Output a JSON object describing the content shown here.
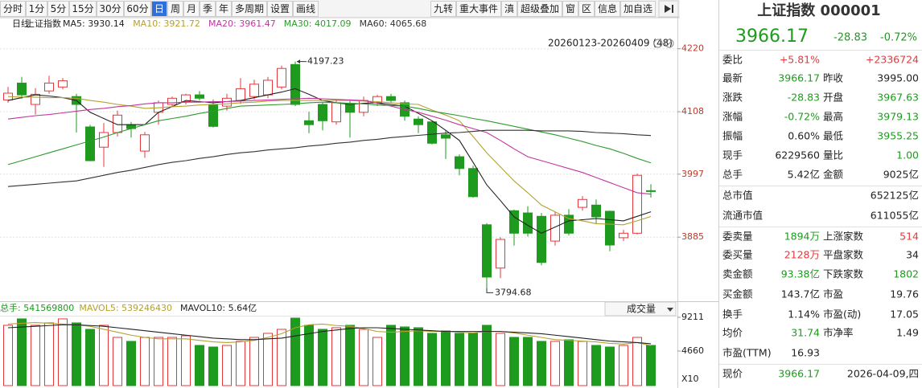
{
  "toolbar": {
    "left": [
      "分时",
      "1分",
      "5分",
      "15分",
      "30分",
      "60分",
      "日",
      "周",
      "月",
      "季",
      "年",
      "多周期",
      "设置",
      "画线"
    ],
    "selected": 6,
    "right": [
      "九转",
      "重大事件",
      "滇",
      "超级叠加",
      "窗",
      "区",
      "信息",
      "加自选"
    ]
  },
  "chart_data": {
    "type": "candlestick",
    "period": "日线",
    "name": "上证指数",
    "range_label": "20260123-20260409 (48)",
    "ylim": [
      3771,
      4261
    ],
    "yticks": [
      4220,
      4108,
      3997,
      3885
    ],
    "grid": true,
    "up_color": "#e4393c",
    "down_color": "#1e9b1e",
    "open": [
      4129,
      4159,
      4121,
      4145,
      4152,
      4135,
      4081,
      4045,
      4071,
      4085,
      4038,
      4107,
      4121,
      4126,
      4138,
      4121,
      4118,
      4128,
      4135,
      4138,
      4152,
      4192,
      4092,
      4121,
      4090,
      4121,
      4107,
      4124,
      4135,
      4124,
      4095,
      4090,
      4067,
      4028,
      4007,
      3907,
      3830,
      3932,
      3928,
      3922,
      3878,
      3924,
      3938,
      3942,
      3931,
      3884,
      3892,
      3967.63
    ],
    "high": [
      4152,
      4170,
      4150,
      4172,
      4168,
      4140,
      4085,
      4088,
      4110,
      4090,
      4072,
      4128,
      4135,
      4140,
      4145,
      4130,
      4140,
      4168,
      4165,
      4170,
      4190,
      4197.23,
      4108,
      4124,
      4130,
      4130,
      4135,
      4138,
      4140,
      4128,
      4100,
      4092,
      4075,
      4032,
      4012,
      3910,
      3885,
      3934,
      3940,
      3928,
      3930,
      3935,
      3958,
      3952,
      3932,
      3898,
      3998,
      3979.13
    ],
    "low": [
      4124,
      4131,
      4103,
      4140,
      4148,
      4071,
      4020,
      4010,
      4064,
      4062,
      4026,
      4085,
      4116,
      4121,
      4128,
      4080,
      4110,
      4122,
      4130,
      4132,
      4148,
      4118,
      4070,
      4075,
      4085,
      4062,
      4100,
      4118,
      4124,
      4092,
      4070,
      4050,
      4024,
      3995,
      3955,
      3794.68,
      3812,
      3870,
      3886,
      3835,
      3870,
      3888,
      3932,
      3908,
      3860,
      3878,
      3890,
      3955.25
    ],
    "close": [
      4141,
      4138,
      4139,
      4159,
      4163,
      4121,
      4021,
      4071,
      4102,
      4078,
      4067,
      4124,
      4132,
      4138,
      4132,
      4082,
      4132,
      4149,
      4157,
      4164,
      4185,
      4121,
      4085,
      4092,
      4124,
      4107,
      4128,
      4135,
      4128,
      4100,
      4085,
      4052,
      4061,
      4007,
      3957,
      3814,
      3881,
      3892,
      3892,
      3840,
      3924,
      3892,
      3952,
      3921,
      3871,
      3892,
      3995,
      3966.17
    ],
    "high_label": "4197.23",
    "low_label": "3794.68",
    "ma": [
      {
        "legend": "MA5: 3930.14",
        "color": "#222222",
        "values": [
          4128,
          4133,
          4138,
          4136,
          4133,
          4128,
          4107,
          4096,
          4085,
          4085,
          4085,
          4107,
          4117,
          4128,
          4126,
          4124,
          4126,
          4128,
          4133,
          4138,
          4143,
          4149,
          4139,
          4128,
          4124,
          4121,
          4123,
          4124,
          4121,
          4118,
          4105,
          4092,
          4075,
          4057,
          4018,
          3978,
          3950,
          3921,
          3906,
          3892,
          3903,
          3914,
          3916,
          3918,
          3916,
          3914,
          3922,
          3930.14
        ]
      },
      {
        "legend": "MA10: 3921.72",
        "color": "#b5a030",
        "values": [
          4135,
          4134,
          4134,
          4133,
          4133,
          4132,
          4128,
          4125,
          4121,
          4118,
          4114,
          4115,
          4117,
          4118,
          4120,
          4121,
          4122,
          4124,
          4125,
          4127,
          4128,
          4128,
          4128,
          4128,
          4128,
          4128,
          4127,
          4126,
          4124,
          4122,
          4121,
          4111,
          4102,
          4092,
          4064,
          4035,
          4010,
          3985,
          3964,
          3942,
          3930,
          3918,
          3914,
          3909,
          3908,
          3907,
          3914,
          3921.72
        ]
      },
      {
        "legend": "MA20: 3961.47",
        "color": "#c2379e",
        "values": [
          4095,
          4098,
          4101,
          4103,
          4106,
          4109,
          4112,
          4114,
          4117,
          4119,
          4122,
          4124,
          4124,
          4125,
          4125,
          4126,
          4126,
          4127,
          4128,
          4129,
          4130,
          4131,
          4132,
          4131,
          4130,
          4129,
          4128,
          4123,
          4118,
          4112,
          4107,
          4100,
          4093,
          4085,
          4078,
          4071,
          4057,
          4042,
          4028,
          4021,
          4014,
          4007,
          4000,
          3991,
          3982,
          3973,
          3964,
          3961.47
        ]
      },
      {
        "legend": "MA30: 4017.09",
        "color": "#2e9a2e",
        "values": [
          4014,
          4021,
          4028,
          4035,
          4042,
          4049,
          4056,
          4063,
          4071,
          4078,
          4085,
          4092,
          4096,
          4100,
          4105,
          4109,
          4114,
          4118,
          4119,
          4120,
          4121,
          4122,
          4124,
          4125,
          4124,
          4123,
          4122,
          4120,
          4119,
          4118,
          4114,
          4109,
          4105,
          4101,
          4096,
          4092,
          4087,
          4082,
          4077,
          4072,
          4067,
          4061,
          4055,
          4048,
          4042,
          4034,
          4025,
          4017.09
        ]
      },
      {
        "legend": "MA60: 4065.68",
        "color": "#333333",
        "values": [
          3975,
          3977,
          3979,
          3981,
          3983,
          3985,
          3990,
          3995,
          4000,
          4004,
          4009,
          4014,
          4018,
          4021,
          4025,
          4028,
          4032,
          4035,
          4037,
          4040,
          4042,
          4044,
          4047,
          4049,
          4052,
          4054,
          4057,
          4059,
          4062,
          4064,
          4066,
          4068,
          4070,
          4071,
          4073,
          4075,
          4075,
          4075,
          4075,
          4074,
          4074,
          4074,
          4073,
          4071,
          4070,
          4069,
          4067,
          4065.68
        ]
      }
    ],
    "volume": {
      "header": [
        {
          "text": "总手: 541569800",
          "color": "#1e9b1e"
        },
        {
          "text": "MAVOL5: 539246430",
          "color": "#b5a030"
        },
        {
          "text": "MAVOL10: 5.64亿",
          "color": "#222222"
        }
      ],
      "selector": "成交量",
      "ylim": [
        0,
        9426
      ],
      "yticks": [
        4660,
        9211
      ],
      "unit_label": "X10",
      "values": [
        8130,
        8997,
        8130,
        8455,
        8997,
        8455,
        7588,
        8130,
        6504,
        5962,
        6504,
        6504,
        6504,
        6721,
        5420,
        5203,
        5420,
        5962,
        6504,
        7046,
        7588,
        9100,
        8130,
        7588,
        7805,
        8130,
        7588,
        6504,
        8130,
        7913,
        7805,
        7046,
        7371,
        7046,
        7046,
        8130,
        7046,
        6504,
        6504,
        5962,
        5962,
        6179,
        5962,
        5420,
        5203,
        5420,
        6504,
        5416
      ],
      "ma": [
        {
          "color": "#b5a030",
          "values": [
            8300,
            8400,
            8500,
            8400,
            8300,
            8200,
            8000,
            7600,
            7200,
            6800,
            6500,
            6300,
            6300,
            6300,
            6100,
            5900,
            5800,
            5900,
            6100,
            6500,
            7000,
            7800,
            8200,
            8300,
            8100,
            8000,
            7700,
            7300,
            7200,
            7300,
            7400,
            7300,
            7300,
            7200,
            7100,
            7300,
            7300,
            7100,
            6800,
            6500,
            6200,
            6100,
            6000,
            5900,
            5700,
            5600,
            5800,
            5392
          ]
        },
        {
          "color": "#222222",
          "values": [
            7800,
            7900,
            8000,
            8100,
            8200,
            8200,
            8100,
            8000,
            7800,
            7600,
            7400,
            7200,
            7000,
            6800,
            6600,
            6400,
            6300,
            6200,
            6200,
            6300,
            6400,
            6700,
            7000,
            7300,
            7500,
            7700,
            7800,
            7800,
            7700,
            7600,
            7500,
            7400,
            7300,
            7300,
            7300,
            7300,
            7300,
            7200,
            7100,
            7000,
            6800,
            6600,
            6400,
            6200,
            6000,
            5900,
            5800,
            5640
          ]
        }
      ]
    }
  },
  "quote": {
    "title": "上证指数 000001",
    "price": "3966.17",
    "change": "-28.83",
    "change_pct": "-0.72%",
    "color": "#1e9b1e",
    "rows": [
      {
        "cells": [
          {
            "text": "委比"
          },
          {
            "text": "+5.81%",
            "color": "#e4393c"
          },
          {
            "text": "+2336724",
            "color": "#e4393c"
          }
        ]
      },
      {
        "cells": [
          {
            "text": "最新"
          },
          {
            "text": "3966.17",
            "color": "#1e9b1e"
          },
          {
            "text": "昨收"
          },
          {
            "text": "3995.00"
          }
        ]
      },
      {
        "cells": [
          {
            "text": "涨跌"
          },
          {
            "text": "-28.83",
            "color": "#1e9b1e"
          },
          {
            "text": "开盘"
          },
          {
            "text": "3967.63",
            "color": "#1e9b1e"
          }
        ]
      },
      {
        "cells": [
          {
            "text": "涨幅"
          },
          {
            "text": "-0.72%",
            "color": "#1e9b1e"
          },
          {
            "text": "最高"
          },
          {
            "text": "3979.13",
            "color": "#1e9b1e"
          }
        ]
      },
      {
        "cells": [
          {
            "text": "振幅"
          },
          {
            "text": "0.60%"
          },
          {
            "text": "最低"
          },
          {
            "text": "3955.25",
            "color": "#1e9b1e"
          }
        ]
      },
      {
        "cells": [
          {
            "text": "现手"
          },
          {
            "text": "6229560"
          },
          {
            "text": "量比"
          },
          {
            "text": "1.00",
            "color": "#1e9b1e"
          }
        ]
      },
      {
        "cells": [
          {
            "text": "总手"
          },
          {
            "text": "5.42亿"
          },
          {
            "text": "金额"
          },
          {
            "text": "9025亿"
          }
        ]
      },
      {
        "cells": [
          {
            "text": "总市值"
          },
          {
            "text": "652125亿"
          }
        ],
        "wide": true
      },
      {
        "cells": [
          {
            "text": "流通市值"
          },
          {
            "text": "611055亿"
          }
        ],
        "wide": true
      },
      {
        "cells": [
          {
            "text": "委卖量"
          },
          {
            "text": "1894万",
            "color": "#1e9b1e"
          },
          {
            "text": "上涨家数"
          },
          {
            "text": "514",
            "color": "#e4393c"
          }
        ]
      },
      {
        "cells": [
          {
            "text": "委买量"
          },
          {
            "text": "2128万",
            "color": "#e4393c"
          },
          {
            "text": "平盘家数"
          },
          {
            "text": "34"
          }
        ]
      },
      {
        "cells": [
          {
            "text": "卖金额"
          },
          {
            "text": "93.38亿",
            "color": "#1e9b1e"
          },
          {
            "text": "下跌家数"
          },
          {
            "text": "1802",
            "color": "#1e9b1e"
          }
        ]
      },
      {
        "cells": [
          {
            "text": "买金额"
          },
          {
            "text": "143.7亿"
          },
          {
            "text": "市盈"
          },
          {
            "text": "19.76"
          }
        ]
      },
      {
        "cells": [
          {
            "text": "换手"
          },
          {
            "text": "1.14%"
          },
          {
            "text": "市盈(动)"
          },
          {
            "text": "17.05"
          }
        ]
      },
      {
        "cells": [
          {
            "text": "均价"
          },
          {
            "text": "31.74",
            "color": "#1e9b1e"
          },
          {
            "text": "市净率"
          },
          {
            "text": "1.49"
          }
        ]
      },
      {
        "cells": [
          {
            "text": "市盈(TTM)"
          },
          {
            "text": "16.93"
          }
        ]
      },
      {
        "cells": [
          {
            "text": "现价"
          },
          {
            "text": "3966.17",
            "color": "#1e9b1e"
          },
          {
            "text": "2026-04-09,四"
          }
        ]
      }
    ]
  }
}
